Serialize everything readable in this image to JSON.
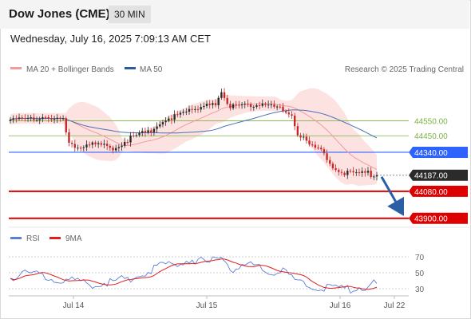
{
  "header": {
    "title": "Dow Jones (CME)",
    "interval": "30 MIN"
  },
  "datetime": "Wednesday, July 16, 2025 7:09:13 AM CET",
  "legend": {
    "bb": "MA 20 + Bollinger Bands",
    "ma50": "MA 50",
    "rsi": "RSI",
    "ma9": "9MA"
  },
  "copyright": "Research © 2025 Trading Central",
  "colors": {
    "up": "#2b2b2b",
    "down": "#c62828",
    "bbFill": "#fde2e2",
    "ma20": "#f39a9a",
    "ma50": "#4a6fb3",
    "rsi": "#5b7fd6",
    "ma9": "#e02020",
    "support": "#dd0000",
    "resistance": "#2e63ff",
    "target": "#7cb342",
    "arrow": "#2a5fa5"
  },
  "chart_data": [
    {
      "type": "candlestick",
      "ylim": [
        43840,
        44850
      ],
      "x_labels": [
        "Jul 14",
        "Jul 15",
        "Jul 16",
        "Jul 22"
      ],
      "last_price": 44187,
      "levels": [
        {
          "value": 44550,
          "label": "44550.00",
          "kind": "target"
        },
        {
          "value": 44450,
          "label": "44450.00",
          "kind": "target"
        },
        {
          "value": 44340,
          "label": "44340.00",
          "kind": "resistance"
        },
        {
          "value": 44187,
          "label": "44187.00",
          "kind": "last"
        },
        {
          "value": 44080,
          "label": "44080.00",
          "kind": "support"
        },
        {
          "value": 43900,
          "label": "43900.00",
          "kind": "support"
        }
      ],
      "arrow": {
        "from": 44187,
        "to": 43900
      },
      "close_path": [
        {
          "i": 0,
          "c": 44540
        },
        {
          "i": 6,
          "c": 44585
        },
        {
          "i": 12,
          "c": 44555
        },
        {
          "i": 18,
          "c": 44560
        },
        {
          "i": 20,
          "c": 44420
        },
        {
          "i": 22,
          "c": 44390
        },
        {
          "i": 28,
          "c": 44385
        },
        {
          "i": 35,
          "c": 44375
        },
        {
          "i": 38,
          "c": 44400
        },
        {
          "i": 42,
          "c": 44445
        },
        {
          "i": 46,
          "c": 44470
        },
        {
          "i": 50,
          "c": 44520
        },
        {
          "i": 53,
          "c": 44570
        },
        {
          "i": 58,
          "c": 44585
        },
        {
          "i": 62,
          "c": 44625
        },
        {
          "i": 66,
          "c": 44665
        },
        {
          "i": 70,
          "c": 44670
        },
        {
          "i": 72,
          "c": 44720
        },
        {
          "i": 75,
          "c": 44630
        },
        {
          "i": 80,
          "c": 44670
        },
        {
          "i": 86,
          "c": 44650
        },
        {
          "i": 92,
          "c": 44625
        },
        {
          "i": 96,
          "c": 44600
        },
        {
          "i": 98,
          "c": 44460
        },
        {
          "i": 102,
          "c": 44385
        },
        {
          "i": 106,
          "c": 44340
        },
        {
          "i": 110,
          "c": 44250
        },
        {
          "i": 114,
          "c": 44205
        },
        {
          "i": 118,
          "c": 44190
        },
        {
          "i": 122,
          "c": 44200
        },
        {
          "i": 125,
          "c": 44187
        }
      ]
    },
    {
      "type": "line",
      "name": "RSI",
      "yticks": [
        70,
        50,
        30
      ],
      "ylim": [
        20,
        80
      ],
      "rsi_path": [
        {
          "i": 0,
          "v": 45
        },
        {
          "i": 8,
          "v": 50
        },
        {
          "i": 14,
          "v": 44
        },
        {
          "i": 20,
          "v": 40
        },
        {
          "i": 26,
          "v": 36
        },
        {
          "i": 34,
          "v": 38
        },
        {
          "i": 42,
          "v": 45
        },
        {
          "i": 50,
          "v": 57
        },
        {
          "i": 58,
          "v": 64
        },
        {
          "i": 62,
          "v": 66
        },
        {
          "i": 68,
          "v": 62
        },
        {
          "i": 72,
          "v": 70
        },
        {
          "i": 76,
          "v": 55
        },
        {
          "i": 82,
          "v": 58
        },
        {
          "i": 88,
          "v": 52
        },
        {
          "i": 94,
          "v": 50
        },
        {
          "i": 98,
          "v": 36
        },
        {
          "i": 102,
          "v": 34
        },
        {
          "i": 108,
          "v": 31
        },
        {
          "i": 114,
          "v": 29
        },
        {
          "i": 120,
          "v": 32
        },
        {
          "i": 125,
          "v": 36
        }
      ]
    }
  ]
}
